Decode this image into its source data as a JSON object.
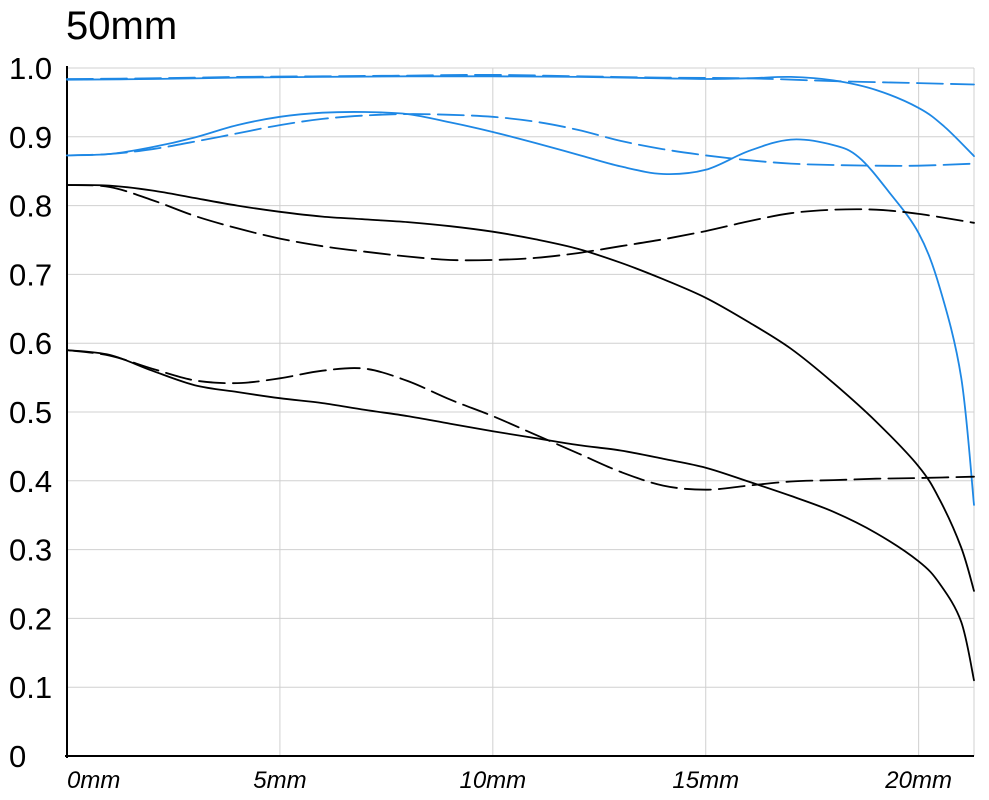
{
  "chart_data": {
    "type": "line",
    "title": "50mm",
    "xlabel": "",
    "ylabel": "",
    "xlim": [
      0,
      21.3
    ],
    "ylim": [
      0,
      1.0
    ],
    "grid": true,
    "x_ticks": [
      0,
      5,
      10,
      15,
      20
    ],
    "x_tick_labels": [
      "0mm",
      "5mm",
      "10mm",
      "15mm",
      "20mm"
    ],
    "y_ticks": [
      0,
      0.1,
      0.2,
      0.3,
      0.4,
      0.5,
      0.6,
      0.7,
      0.8,
      0.9,
      1.0
    ],
    "y_tick_labels": [
      "0",
      "0.1",
      "0.2",
      "0.3",
      "0.4",
      "0.5",
      "0.6",
      "0.7",
      "0.8",
      "0.9",
      "1.0"
    ],
    "colors": {
      "blue": "#1e88e5",
      "black": "#000000",
      "grid": "#d0d0d0"
    },
    "series": [
      {
        "color": "blue",
        "style": "solid",
        "points": [
          [
            0,
            0.983
          ],
          [
            2,
            0.984
          ],
          [
            4,
            0.986
          ],
          [
            6,
            0.987
          ],
          [
            8,
            0.988
          ],
          [
            10,
            0.988
          ],
          [
            12,
            0.987
          ],
          [
            14,
            0.985
          ],
          [
            15,
            0.984
          ],
          [
            16,
            0.985
          ],
          [
            17,
            0.987
          ],
          [
            18,
            0.982
          ],
          [
            19,
            0.968
          ],
          [
            20,
            0.942
          ],
          [
            20.6,
            0.915
          ],
          [
            21.3,
            0.872
          ]
        ]
      },
      {
        "color": "blue",
        "style": "dashed",
        "points": [
          [
            0,
            0.984
          ],
          [
            2,
            0.985
          ],
          [
            4,
            0.987
          ],
          [
            6,
            0.988
          ],
          [
            8,
            0.989
          ],
          [
            10,
            0.99
          ],
          [
            12,
            0.988
          ],
          [
            14,
            0.986
          ],
          [
            16,
            0.985
          ],
          [
            18,
            0.981
          ],
          [
            20,
            0.978
          ],
          [
            21.3,
            0.976
          ]
        ]
      },
      {
        "color": "blue",
        "style": "solid",
        "points": [
          [
            0,
            0.873
          ],
          [
            1,
            0.875
          ],
          [
            2,
            0.885
          ],
          [
            3,
            0.899
          ],
          [
            4,
            0.917
          ],
          [
            5,
            0.929
          ],
          [
            6,
            0.935
          ],
          [
            7,
            0.936
          ],
          [
            8,
            0.933
          ],
          [
            9,
            0.921
          ],
          [
            10,
            0.907
          ],
          [
            11,
            0.891
          ],
          [
            12,
            0.874
          ],
          [
            13,
            0.857
          ],
          [
            14,
            0.846
          ],
          [
            15,
            0.852
          ],
          [
            16,
            0.879
          ],
          [
            17,
            0.896
          ],
          [
            18,
            0.888
          ],
          [
            18.6,
            0.87
          ],
          [
            19.3,
            0.82
          ],
          [
            20,
            0.76
          ],
          [
            20.5,
            0.68
          ],
          [
            21,
            0.55
          ],
          [
            21.3,
            0.365
          ]
        ]
      },
      {
        "color": "blue",
        "style": "dashed",
        "points": [
          [
            0,
            0.873
          ],
          [
            1,
            0.875
          ],
          [
            2,
            0.882
          ],
          [
            3,
            0.893
          ],
          [
            4,
            0.905
          ],
          [
            5,
            0.917
          ],
          [
            6,
            0.926
          ],
          [
            7,
            0.931
          ],
          [
            8,
            0.933
          ],
          [
            9,
            0.932
          ],
          [
            10,
            0.929
          ],
          [
            11,
            0.922
          ],
          [
            12,
            0.91
          ],
          [
            13,
            0.894
          ],
          [
            14,
            0.882
          ],
          [
            15,
            0.873
          ],
          [
            16,
            0.866
          ],
          [
            17,
            0.861
          ],
          [
            18,
            0.859
          ],
          [
            19,
            0.858
          ],
          [
            20,
            0.858
          ],
          [
            21.3,
            0.861
          ]
        ]
      },
      {
        "color": "black",
        "style": "solid",
        "points": [
          [
            0,
            0.83
          ],
          [
            1,
            0.829
          ],
          [
            2,
            0.822
          ],
          [
            3,
            0.811
          ],
          [
            4,
            0.8
          ],
          [
            5,
            0.791
          ],
          [
            6,
            0.784
          ],
          [
            7,
            0.78
          ],
          [
            8,
            0.776
          ],
          [
            9,
            0.77
          ],
          [
            10,
            0.762
          ],
          [
            11,
            0.751
          ],
          [
            12,
            0.737
          ],
          [
            13,
            0.717
          ],
          [
            14,
            0.693
          ],
          [
            15,
            0.666
          ],
          [
            16,
            0.631
          ],
          [
            17,
            0.592
          ],
          [
            18,
            0.542
          ],
          [
            19,
            0.486
          ],
          [
            20,
            0.421
          ],
          [
            20.5,
            0.372
          ],
          [
            21,
            0.303
          ],
          [
            21.3,
            0.24
          ]
        ]
      },
      {
        "color": "black",
        "style": "dashed",
        "points": [
          [
            0,
            0.83
          ],
          [
            1,
            0.827
          ],
          [
            2,
            0.808
          ],
          [
            3,
            0.785
          ],
          [
            4,
            0.767
          ],
          [
            5,
            0.752
          ],
          [
            6,
            0.741
          ],
          [
            7,
            0.733
          ],
          [
            8,
            0.726
          ],
          [
            9,
            0.721
          ],
          [
            10,
            0.721
          ],
          [
            11,
            0.724
          ],
          [
            12,
            0.731
          ],
          [
            13,
            0.741
          ],
          [
            14,
            0.751
          ],
          [
            15,
            0.763
          ],
          [
            16,
            0.777
          ],
          [
            17,
            0.789
          ],
          [
            18,
            0.794
          ],
          [
            19,
            0.794
          ],
          [
            20,
            0.788
          ],
          [
            21.3,
            0.775
          ]
        ]
      },
      {
        "color": "black",
        "style": "solid",
        "points": [
          [
            0,
            0.59
          ],
          [
            1,
            0.583
          ],
          [
            2,
            0.56
          ],
          [
            3,
            0.539
          ],
          [
            4,
            0.529
          ],
          [
            5,
            0.52
          ],
          [
            6,
            0.513
          ],
          [
            7,
            0.503
          ],
          [
            8,
            0.494
          ],
          [
            9,
            0.483
          ],
          [
            10,
            0.472
          ],
          [
            11,
            0.462
          ],
          [
            12,
            0.452
          ],
          [
            13,
            0.444
          ],
          [
            14,
            0.432
          ],
          [
            15,
            0.419
          ],
          [
            16,
            0.399
          ],
          [
            17,
            0.378
          ],
          [
            18,
            0.355
          ],
          [
            19,
            0.324
          ],
          [
            20,
            0.283
          ],
          [
            20.5,
            0.25
          ],
          [
            21,
            0.195
          ],
          [
            21.3,
            0.11
          ]
        ]
      },
      {
        "color": "black",
        "style": "dashed",
        "points": [
          [
            0,
            0.59
          ],
          [
            1,
            0.582
          ],
          [
            2,
            0.563
          ],
          [
            3,
            0.546
          ],
          [
            4,
            0.542
          ],
          [
            5,
            0.549
          ],
          [
            6,
            0.56
          ],
          [
            7,
            0.563
          ],
          [
            8,
            0.545
          ],
          [
            9,
            0.518
          ],
          [
            10,
            0.494
          ],
          [
            11,
            0.467
          ],
          [
            12,
            0.44
          ],
          [
            13,
            0.413
          ],
          [
            14,
            0.393
          ],
          [
            15,
            0.387
          ],
          [
            16,
            0.393
          ],
          [
            17,
            0.399
          ],
          [
            18,
            0.401
          ],
          [
            19,
            0.403
          ],
          [
            20,
            0.404
          ],
          [
            21.3,
            0.406
          ]
        ]
      }
    ]
  }
}
